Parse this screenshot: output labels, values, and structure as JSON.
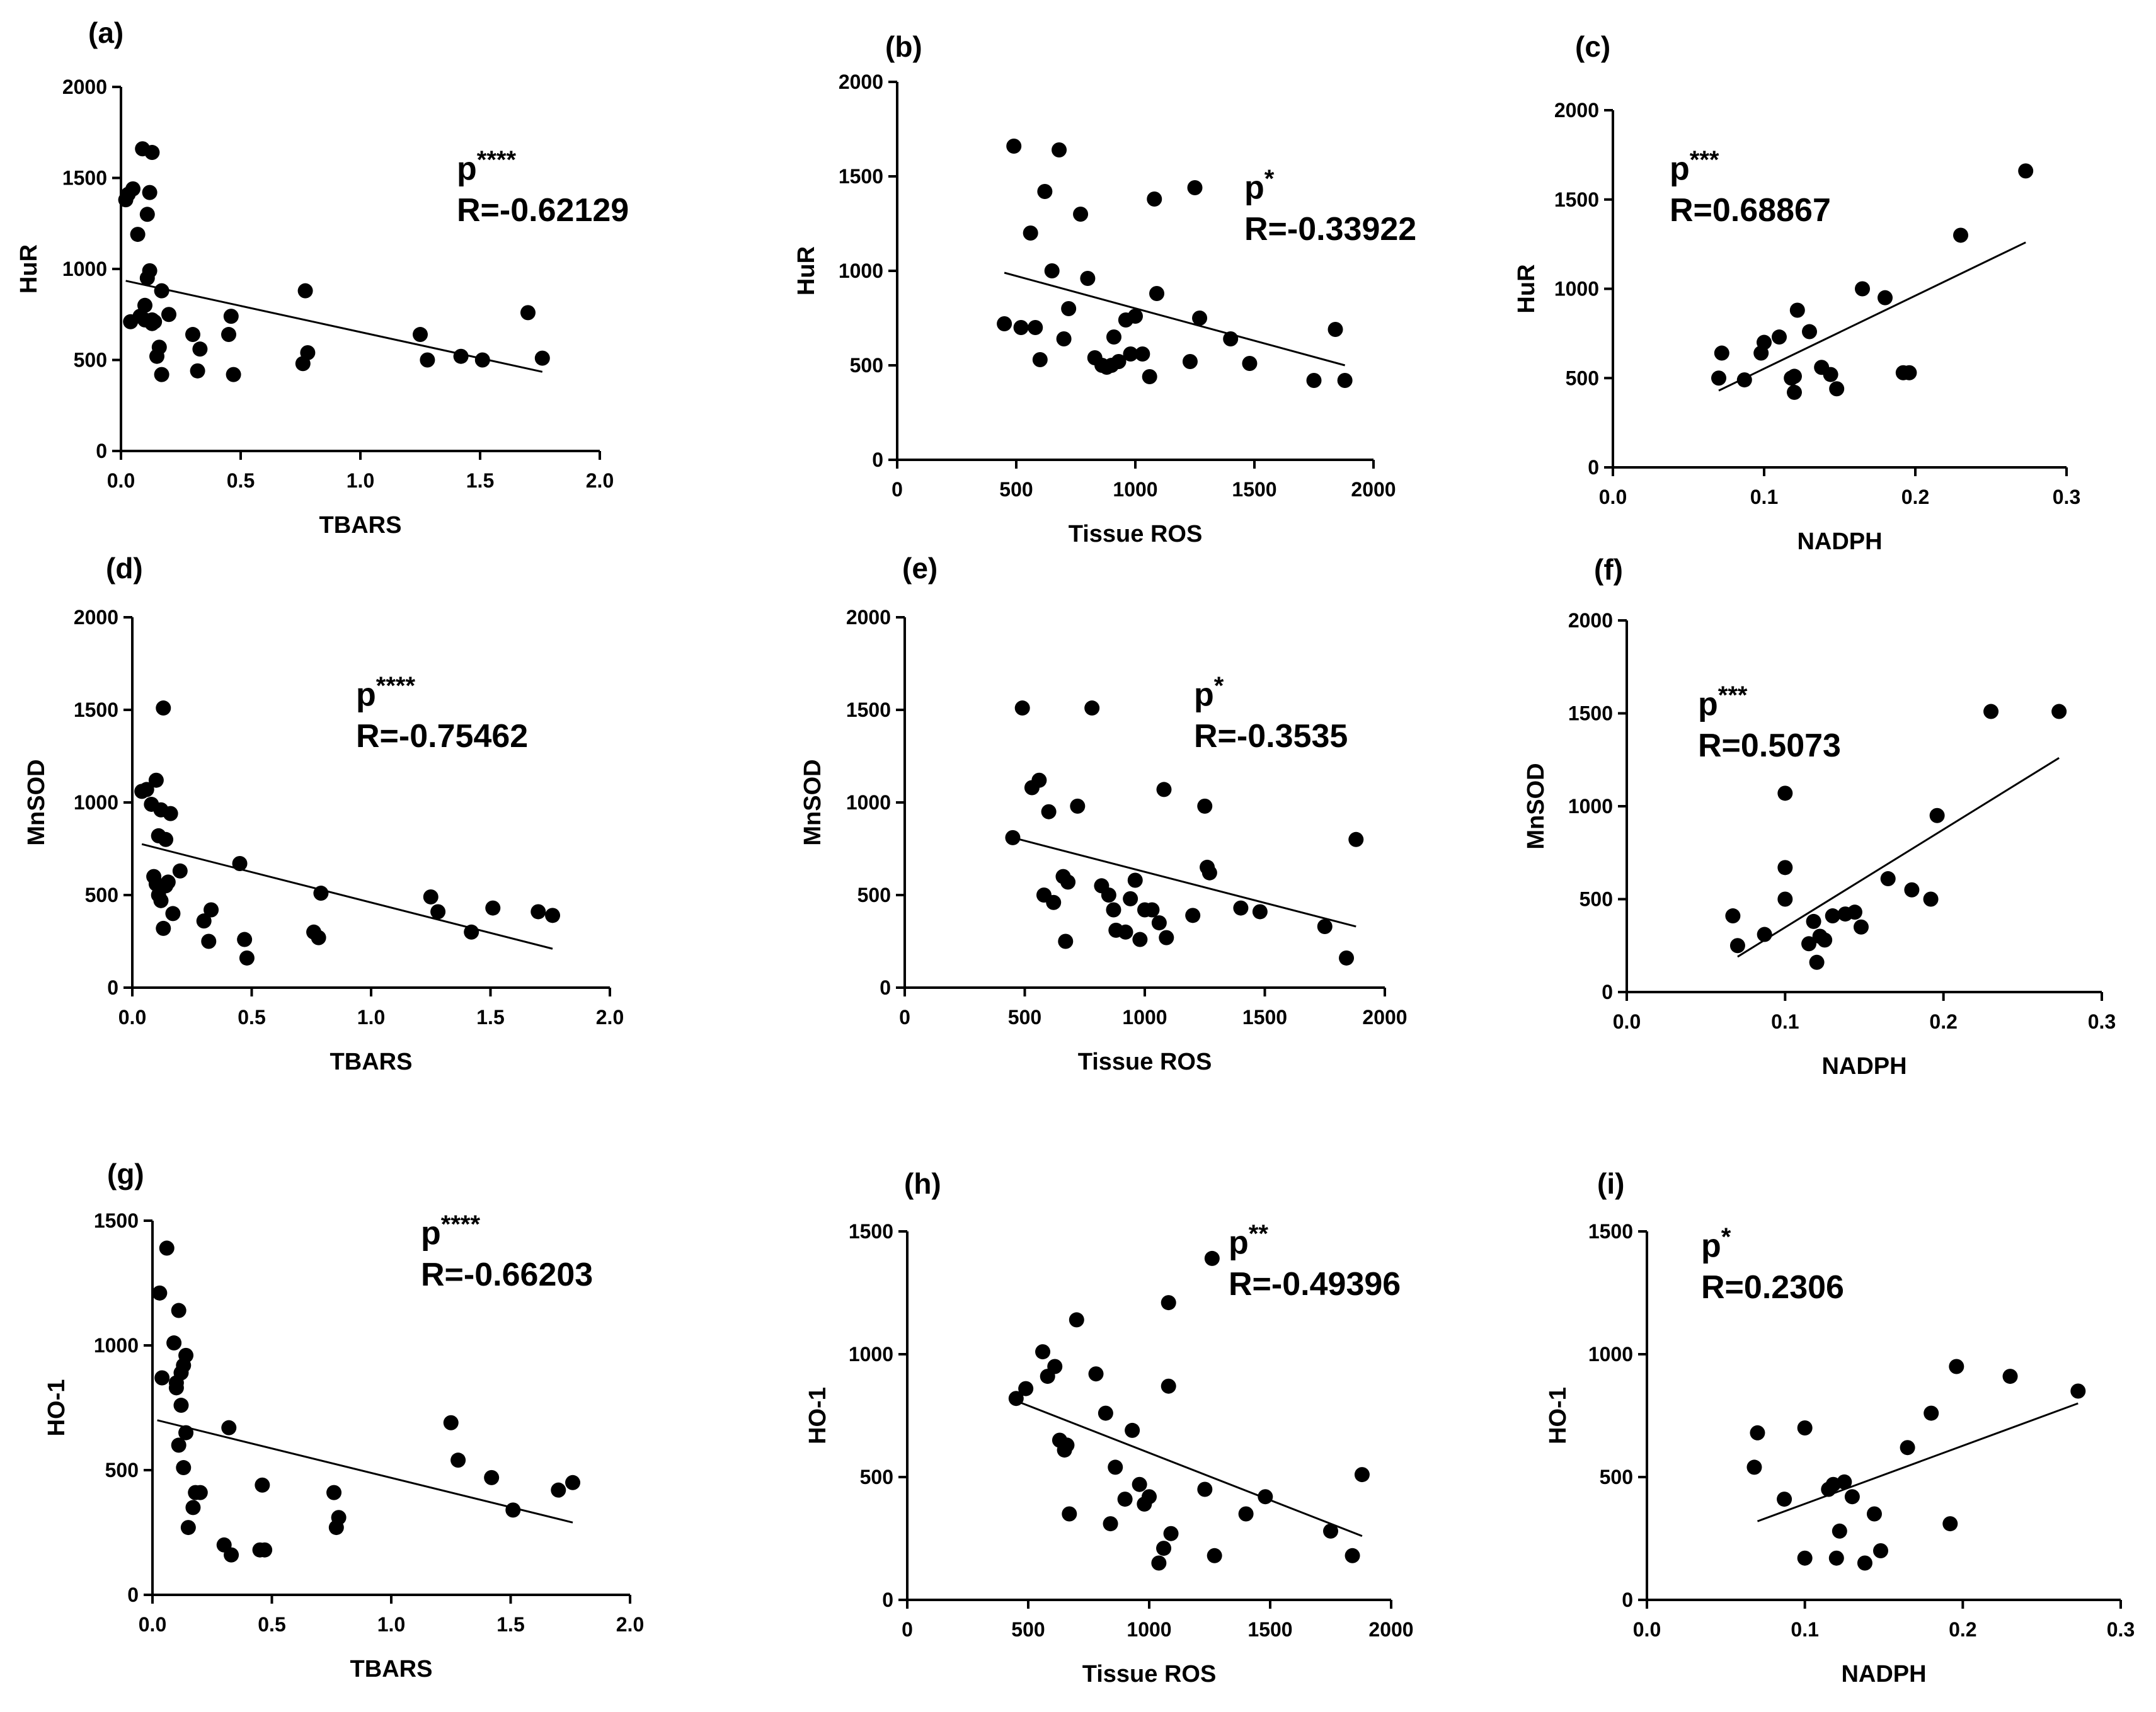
{
  "chart_data": [
    {
      "type": "scatter",
      "panel": "(a)",
      "xlabel": "TBARS",
      "ylabel": "HuR",
      "xlim": [
        0,
        2
      ],
      "ylim": [
        0,
        2000
      ],
      "xticks": [
        "0.0",
        "0.5",
        "1.0",
        "1.5",
        "2.0"
      ],
      "yticks": [
        "0",
        "500",
        "1000",
        "1500",
        "2000"
      ],
      "annotation": {
        "p": "p",
        "stars": "****",
        "r": "R=-0.62129"
      },
      "fit": {
        "x": [
          0.02,
          1.76
        ],
        "y": [
          935,
          435
        ]
      },
      "x": [
        0.02,
        0.03,
        0.05,
        0.07,
        0.09,
        0.11,
        0.12,
        0.13,
        0.14,
        0.17,
        0.04,
        0.1,
        0.12,
        0.11,
        0.1,
        0.13,
        0.16,
        0.2,
        0.08,
        0.13,
        0.15,
        0.17,
        0.3,
        0.32,
        0.33,
        0.45,
        0.46,
        0.47,
        0.76,
        0.77,
        0.78,
        1.25,
        1.28,
        1.42,
        1.51,
        1.7,
        1.76
      ],
      "y": [
        1380,
        1410,
        1440,
        1190,
        1660,
        1300,
        1420,
        1640,
        710,
        880,
        710,
        720,
        990,
        950,
        800,
        720,
        570,
        750,
        740,
        700,
        520,
        420,
        640,
        440,
        560,
        640,
        740,
        420,
        480,
        880,
        540,
        640,
        500,
        520,
        500,
        760,
        510
      ]
    },
    {
      "type": "scatter",
      "panel": "(b)",
      "xlabel": "Tissue ROS",
      "ylabel": "HuR",
      "xlim": [
        0,
        2000
      ],
      "ylim": [
        0,
        2000
      ],
      "xticks": [
        "0",
        "500",
        "1000",
        "1500",
        "2000"
      ],
      "yticks": [
        "0",
        "500",
        "1000",
        "1500",
        "2000"
      ],
      "annotation": {
        "p": "p",
        "stars": "*",
        "r": "R=-0.33922"
      },
      "fit": {
        "x": [
          450,
          1880
        ],
        "y": [
          990,
          500
        ]
      },
      "x": [
        450,
        490,
        520,
        560,
        580,
        600,
        620,
        650,
        680,
        700,
        720,
        770,
        800,
        830,
        860,
        880,
        900,
        910,
        930,
        960,
        980,
        1000,
        1030,
        1060,
        1080,
        1090,
        1230,
        1250,
        1270,
        1400,
        1480,
        1750,
        1840,
        1880
      ],
      "y": [
        720,
        1660,
        700,
        1200,
        700,
        530,
        1420,
        1000,
        1640,
        640,
        800,
        1300,
        960,
        540,
        500,
        490,
        500,
        650,
        520,
        740,
        560,
        760,
        560,
        440,
        1380,
        880,
        520,
        1440,
        750,
        640,
        510,
        420,
        690,
        420
      ]
    },
    {
      "type": "scatter",
      "panel": "(c)",
      "xlabel": "NADPH",
      "ylabel": "HuR",
      "xlim": [
        0,
        0.3
      ],
      "ylim": [
        0,
        2000
      ],
      "xticks": [
        "0.0",
        "0.1",
        "0.2",
        "0.3"
      ],
      "yticks": [
        "0",
        "500",
        "1000",
        "1500",
        "2000"
      ],
      "annotation": {
        "p": "p",
        "stars": "***",
        "r": "R=0.68867"
      },
      "fit": {
        "x": [
          0.07,
          0.273
        ],
        "y": [
          430,
          1260
        ]
      },
      "x": [
        0.07,
        0.072,
        0.087,
        0.098,
        0.1,
        0.11,
        0.118,
        0.12,
        0.12,
        0.122,
        0.13,
        0.138,
        0.144,
        0.148,
        0.165,
        0.18,
        0.192,
        0.196,
        0.23,
        0.273
      ],
      "y": [
        500,
        640,
        490,
        640,
        700,
        730,
        500,
        510,
        420,
        880,
        760,
        560,
        520,
        440,
        1000,
        950,
        530,
        530,
        1300,
        1660
      ]
    },
    {
      "type": "scatter",
      "panel": "(d)",
      "xlabel": "TBARS",
      "ylabel": "MnSOD",
      "xlim": [
        0,
        2
      ],
      "ylim": [
        0,
        2000
      ],
      "xticks": [
        "0.0",
        "0.5",
        "1.0",
        "1.5",
        "2.0"
      ],
      "yticks": [
        "0",
        "500",
        "1000",
        "1500",
        "2000"
      ],
      "annotation": {
        "p": "p",
        "stars": "****",
        "r": "R=-0.75462"
      },
      "fit": {
        "x": [
          0.04,
          1.76
        ],
        "y": [
          775,
          210
        ]
      },
      "x": [
        0.04,
        0.06,
        0.08,
        0.1,
        0.11,
        0.12,
        0.13,
        0.14,
        0.16,
        0.09,
        0.1,
        0.11,
        0.12,
        0.13,
        0.15,
        0.17,
        0.2,
        0.14,
        0.3,
        0.32,
        0.33,
        0.45,
        0.47,
        0.48,
        0.76,
        0.78,
        0.79,
        1.25,
        1.28,
        1.42,
        1.51,
        1.7,
        1.76
      ],
      "y": [
        1060,
        1070,
        990,
        1120,
        820,
        960,
        1510,
        800,
        940,
        600,
        560,
        500,
        470,
        320,
        570,
        400,
        630,
        550,
        360,
        250,
        420,
        670,
        260,
        160,
        300,
        270,
        510,
        490,
        410,
        300,
        430,
        410,
        390
      ]
    },
    {
      "type": "scatter",
      "panel": "(e)",
      "xlabel": "Tissue ROS",
      "ylabel": "MnSOD",
      "xlim": [
        0,
        2000
      ],
      "ylim": [
        0,
        2000
      ],
      "xticks": [
        "0",
        "500",
        "1000",
        "1500",
        "2000"
      ],
      "yticks": [
        "0",
        "500",
        "1000",
        "1500",
        "2000"
      ],
      "annotation": {
        "p": "p",
        "stars": "*",
        "r": "R=-0.3535"
      },
      "fit": {
        "x": [
          450,
          1880
        ],
        "y": [
          810,
          330
        ]
      },
      "x": [
        450,
        490,
        530,
        560,
        580,
        600,
        620,
        660,
        670,
        680,
        720,
        780,
        820,
        850,
        870,
        880,
        920,
        940,
        960,
        980,
        1000,
        1030,
        1060,
        1080,
        1090,
        1200,
        1250,
        1260,
        1270,
        1400,
        1480,
        1750,
        1840,
        1880
      ],
      "y": [
        810,
        1510,
        1080,
        1120,
        500,
        950,
        460,
        600,
        250,
        570,
        980,
        1510,
        550,
        500,
        420,
        310,
        300,
        480,
        580,
        260,
        420,
        420,
        350,
        1070,
        270,
        390,
        980,
        650,
        620,
        430,
        410,
        330,
        160,
        800
      ]
    },
    {
      "type": "scatter",
      "panel": "(f)",
      "xlabel": "NADPH",
      "ylabel": "MnSOD",
      "xlim": [
        0,
        0.3
      ],
      "ylim": [
        0,
        2000
      ],
      "xticks": [
        "0.0",
        "0.1",
        "0.2",
        "0.3"
      ],
      "yticks": [
        "0",
        "500",
        "1000",
        "1500",
        "2000"
      ],
      "annotation": {
        "p": "p",
        "stars": "***",
        "r": "R=0.5073"
      },
      "fit": {
        "x": [
          0.07,
          0.273
        ],
        "y": [
          190,
          1260
        ]
      },
      "x": [
        0.067,
        0.07,
        0.087,
        0.1,
        0.1,
        0.1,
        0.115,
        0.118,
        0.12,
        0.122,
        0.125,
        0.13,
        0.138,
        0.144,
        0.148,
        0.165,
        0.18,
        0.192,
        0.196,
        0.23,
        0.273
      ],
      "y": [
        410,
        250,
        310,
        1070,
        670,
        500,
        260,
        380,
        160,
        300,
        280,
        410,
        420,
        430,
        350,
        610,
        550,
        500,
        950,
        1510,
        1510
      ]
    },
    {
      "type": "scatter",
      "panel": "(g)",
      "xlabel": "TBARS",
      "ylabel": "HO-1",
      "xlim": [
        0,
        2
      ],
      "ylim": [
        0,
        1500
      ],
      "xticks": [
        "0.0",
        "0.5",
        "1.0",
        "1.5",
        "2.0"
      ],
      "yticks": [
        "0",
        "500",
        "1000",
        "1500"
      ],
      "annotation": {
        "p": "p",
        "stars": "****",
        "r": "R=-0.66203"
      },
      "fit": {
        "x": [
          0.02,
          1.76
        ],
        "y": [
          700,
          290
        ]
      },
      "x": [
        0.03,
        0.04,
        0.06,
        0.09,
        0.1,
        0.11,
        0.12,
        0.13,
        0.14,
        0.1,
        0.11,
        0.12,
        0.13,
        0.14,
        0.15,
        0.17,
        0.18,
        0.2,
        0.3,
        0.32,
        0.33,
        0.45,
        0.46,
        0.47,
        0.76,
        0.77,
        0.78,
        1.25,
        1.28,
        1.42,
        1.51,
        1.7,
        1.76
      ],
      "y": [
        1210,
        870,
        1390,
        1010,
        850,
        1140,
        890,
        920,
        960,
        830,
        600,
        760,
        510,
        650,
        270,
        350,
        410,
        410,
        200,
        670,
        160,
        180,
        440,
        180,
        410,
        270,
        310,
        690,
        540,
        470,
        340,
        420,
        450
      ]
    },
    {
      "type": "scatter",
      "panel": "(h)",
      "xlabel": "Tissue ROS",
      "ylabel": "HO-1",
      "xlim": [
        0,
        2000
      ],
      "ylim": [
        0,
        1500
      ],
      "xticks": [
        "0",
        "500",
        "1000",
        "1500",
        "2000"
      ],
      "yticks": [
        "0",
        "500",
        "1000",
        "1500"
      ],
      "annotation": {
        "p": "p",
        "stars": "**",
        "r": "R=-0.49396"
      },
      "fit": {
        "x": [
          450,
          1880
        ],
        "y": [
          810,
          260
        ]
      },
      "x": [
        450,
        490,
        560,
        580,
        610,
        630,
        650,
        660,
        670,
        700,
        780,
        820,
        840,
        860,
        900,
        930,
        960,
        980,
        1000,
        1040,
        1060,
        1080,
        1080,
        1090,
        1230,
        1260,
        1270,
        1400,
        1480,
        1750,
        1840,
        1880
      ],
      "y": [
        820,
        860,
        1010,
        910,
        950,
        650,
        610,
        630,
        350,
        1140,
        920,
        760,
        310,
        540,
        410,
        690,
        470,
        390,
        420,
        150,
        210,
        1210,
        870,
        270,
        450,
        1390,
        180,
        350,
        420,
        280,
        180,
        510
      ]
    },
    {
      "type": "scatter",
      "panel": "(i)",
      "xlabel": "NADPH",
      "ylabel": "HO-1",
      "xlim": [
        0,
        0.3
      ],
      "ylim": [
        0,
        1500
      ],
      "xticks": [
        "0.0",
        "0.1",
        "0.2",
        "0.3"
      ],
      "yticks": [
        "0",
        "500",
        "1000",
        "1500"
      ],
      "annotation": {
        "p": "p",
        "stars": "*",
        "r": "R=0.2306"
      },
      "fit": {
        "x": [
          0.07,
          0.273
        ],
        "y": [
          320,
          800
        ]
      },
      "x": [
        0.068,
        0.07,
        0.087,
        0.1,
        0.1,
        0.115,
        0.118,
        0.12,
        0.122,
        0.125,
        0.13,
        0.138,
        0.144,
        0.148,
        0.165,
        0.18,
        0.192,
        0.196,
        0.23,
        0.273
      ],
      "y": [
        540,
        680,
        410,
        700,
        170,
        450,
        470,
        170,
        280,
        480,
        420,
        150,
        350,
        200,
        620,
        760,
        310,
        950,
        910,
        850
      ]
    }
  ]
}
